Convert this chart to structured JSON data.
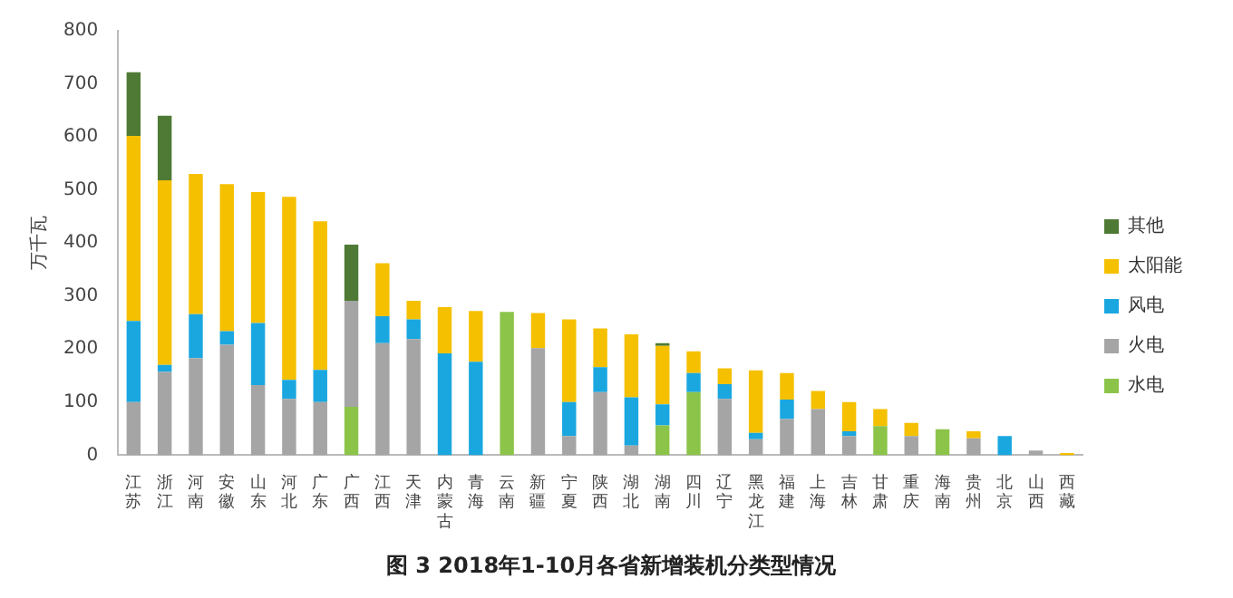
{
  "chart_data": {
    "type": "bar",
    "title": "图 3 2018年1-10月各省新增装机分类型情况",
    "ylabel": "万千瓦",
    "stacked": true,
    "categories": [
      "江苏",
      "浙江",
      "河南",
      "安徽",
      "山东",
      "河北",
      "广东",
      "广西",
      "江西",
      "天津",
      "内蒙古",
      "青海",
      "云南",
      "新疆",
      "宁夏",
      "陕西",
      "湖北",
      "湖南",
      "四川",
      "辽宁",
      "黑龙江",
      "福建",
      "上海",
      "吉林",
      "甘肃",
      "重庆",
      "海南",
      "贵州",
      "北京",
      "山西",
      "西藏"
    ],
    "series": [
      {
        "name": "水电",
        "color": "#8cc44a",
        "values": [
          null,
          null,
          null,
          null,
          null,
          null,
          null,
          91,
          null,
          null,
          null,
          null,
          270,
          null,
          null,
          null,
          null,
          56,
          119,
          null,
          null,
          null,
          null,
          null,
          55,
          null,
          49,
          null,
          null,
          null,
          null
        ]
      },
      {
        "name": "火电",
        "color": "#a5a5a5",
        "values": [
          100,
          157,
          183,
          208,
          132,
          106,
          100,
          200,
          211,
          219,
          null,
          null,
          null,
          202,
          36,
          119,
          18,
          null,
          null,
          106,
          30,
          68,
          87,
          36,
          null,
          36,
          null,
          32,
          null,
          9,
          null
        ]
      },
      {
        "name": "风电",
        "color": "#1aa7e0",
        "values": [
          153,
          13,
          83,
          26,
          117,
          36,
          61,
          null,
          51,
          37,
          192,
          176,
          null,
          null,
          64,
          47,
          91,
          40,
          36,
          28,
          12,
          37,
          null,
          9,
          null,
          null,
          null,
          null,
          36,
          null,
          null
        ]
      },
      {
        "name": "太阳能",
        "color": "#f5c000",
        "values": [
          349,
          348,
          264,
          277,
          247,
          345,
          280,
          null,
          100,
          35,
          87,
          96,
          null,
          66,
          156,
          73,
          119,
          110,
          41,
          30,
          118,
          50,
          34,
          55,
          32,
          25,
          null,
          13,
          null,
          null,
          4
        ]
      },
      {
        "name": "其他",
        "color": "#4e7a35",
        "values": [
          120,
          122,
          null,
          null,
          null,
          null,
          null,
          106,
          null,
          null,
          null,
          null,
          null,
          null,
          null,
          null,
          null,
          5,
          null,
          null,
          null,
          null,
          null,
          null,
          null,
          null,
          null,
          null,
          null,
          null,
          null
        ]
      }
    ],
    "ylim": [
      0,
      800
    ],
    "yticks": [
      0,
      100,
      200,
      300,
      400,
      500,
      600,
      700,
      800
    ],
    "grid": false,
    "legend": "right"
  }
}
